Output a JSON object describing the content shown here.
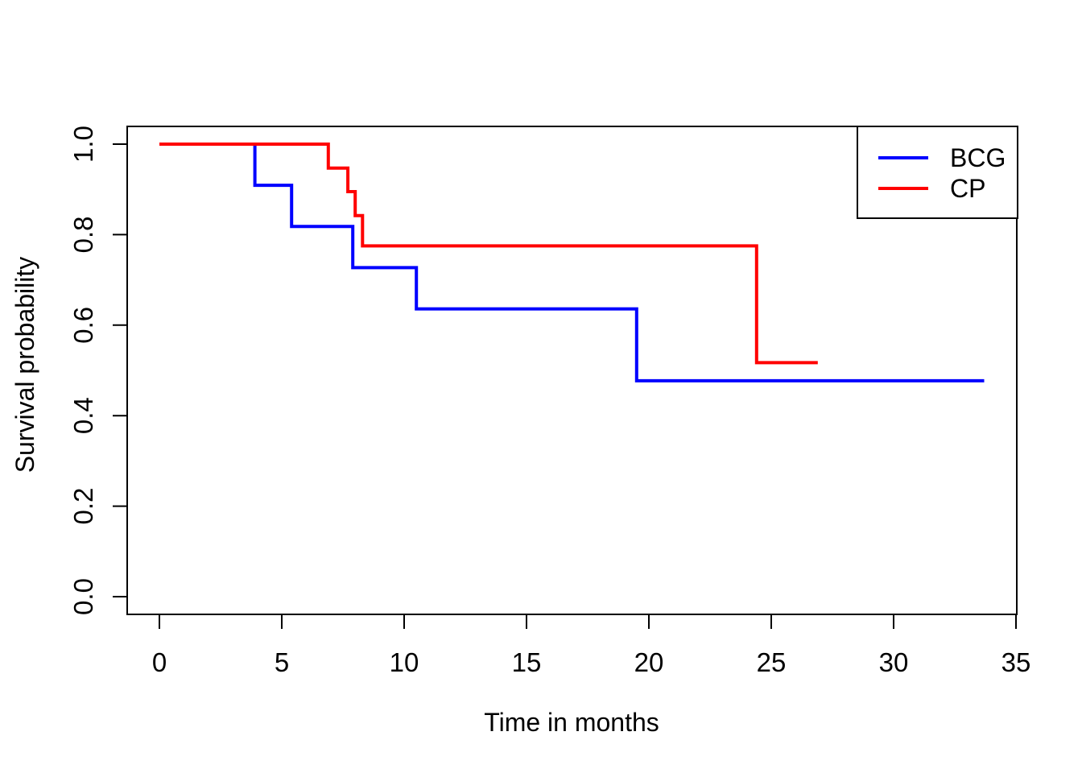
{
  "figure": {
    "background": "#ffffff",
    "axis_color": "#000000",
    "text_color": "#000000"
  },
  "chart_data": {
    "type": "line",
    "subtype": "kaplan-meier-step",
    "title": "",
    "xlabel": "Time in months",
    "ylabel": "Survival probability",
    "xlim": [
      0,
      35
    ],
    "ylim": [
      0.0,
      1.0
    ],
    "x_ticks": [
      "0",
      "5",
      "10",
      "15",
      "20",
      "25",
      "30",
      "35"
    ],
    "y_ticks": [
      "0.0",
      "0.2",
      "0.4",
      "0.6",
      "0.8",
      "1.0"
    ],
    "grid": false,
    "legend_position": "top-right",
    "series": [
      {
        "name": "BCG",
        "color": "#0000ff",
        "start": [
          0,
          1.0
        ],
        "drops": [
          [
            3.9,
            0.909
          ],
          [
            5.4,
            0.818
          ],
          [
            7.9,
            0.727
          ],
          [
            10.5,
            0.636
          ],
          [
            19.5,
            0.477
          ]
        ],
        "end_time": 33.7
      },
      {
        "name": "CP",
        "color": "#ff0000",
        "start": [
          0,
          1.0
        ],
        "drops": [
          [
            6.9,
            0.947
          ],
          [
            7.7,
            0.895
          ],
          [
            8.0,
            0.842
          ],
          [
            8.3,
            0.775
          ],
          [
            24.4,
            0.517
          ]
        ],
        "end_time": 26.9
      }
    ],
    "legend": {
      "items": [
        {
          "label": "BCG",
          "color": "#0000ff"
        },
        {
          "label": "CP",
          "color": "#ff0000"
        }
      ]
    }
  }
}
